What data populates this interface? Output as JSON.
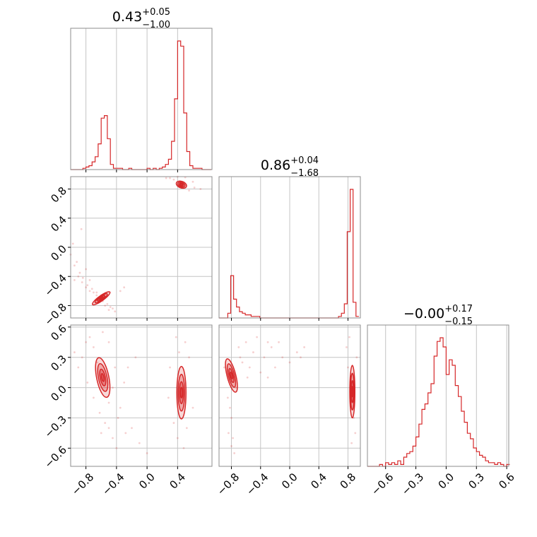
{
  "chart_data": {
    "type": "corner",
    "color": "#d62728",
    "parameters": [
      {
        "median": "0.43",
        "plus": "+0.05",
        "minus": "−1.00"
      },
      {
        "median": "0.86",
        "plus": "+0.04",
        "minus": "−1.68"
      },
      {
        "median": "−0.00",
        "plus": "+0.17",
        "minus": "−0.15"
      }
    ],
    "ranges": [
      [
        -1.0,
        0.85
      ],
      [
        -0.97,
        0.97
      ],
      [
        -0.78,
        0.62
      ]
    ],
    "ticks": [
      {
        "values": [
          -0.8,
          -0.4,
          0.0,
          0.4
        ],
        "labels": [
          "−0.8",
          "−0.4",
          "0.0",
          "0.4"
        ]
      },
      {
        "values": [
          -0.8,
          -0.4,
          0.0,
          0.4,
          0.8
        ],
        "labels": [
          "−0.8",
          "−0.4",
          "0.0",
          "0.4",
          "0.8"
        ]
      },
      {
        "values": [
          -0.6,
          -0.3,
          0.0,
          0.3,
          0.6
        ],
        "labels": [
          "−0.6",
          "−0.3",
          "0.0",
          "0.3",
          "0.6"
        ]
      }
    ],
    "histograms": [
      {
        "x": [
          -0.98,
          -0.94,
          -0.9,
          -0.86,
          -0.82,
          -0.78,
          -0.74,
          -0.7,
          -0.66,
          -0.62,
          -0.58,
          -0.54,
          -0.5,
          -0.46,
          -0.42,
          -0.38,
          -0.34,
          -0.3,
          -0.26,
          -0.22,
          -0.18,
          -0.14,
          -0.1,
          -0.06,
          -0.02,
          0.02,
          0.06,
          0.1,
          0.14,
          0.18,
          0.22,
          0.26,
          0.3,
          0.34,
          0.38,
          0.42,
          0.46,
          0.5,
          0.54,
          0.58,
          0.62,
          0.66,
          0.7,
          0.74,
          0.78,
          0.82
        ],
        "y": [
          0,
          0,
          0,
          0,
          1,
          2,
          3,
          6,
          10,
          20,
          40,
          42,
          24,
          4,
          1,
          1,
          1,
          0,
          0,
          1,
          0,
          0,
          0,
          0,
          0,
          1,
          0,
          1,
          0,
          1,
          2,
          4,
          8,
          22,
          55,
          100,
          96,
          44,
          14,
          3,
          1,
          1,
          1,
          0,
          0,
          0
        ]
      },
      {
        "x": [
          -0.95,
          -0.91,
          -0.87,
          -0.83,
          -0.79,
          -0.75,
          -0.71,
          -0.67,
          -0.63,
          -0.59,
          -0.55,
          -0.51,
          -0.47,
          -0.43,
          -0.39,
          -0.35,
          -0.31,
          -0.27,
          -0.23,
          -0.19,
          -0.15,
          -0.11,
          -0.07,
          -0.03,
          0.01,
          0.05,
          0.09,
          0.13,
          0.17,
          0.21,
          0.25,
          0.29,
          0.33,
          0.37,
          0.41,
          0.45,
          0.49,
          0.53,
          0.57,
          0.61,
          0.65,
          0.69,
          0.73,
          0.77,
          0.81,
          0.85,
          0.89,
          0.93
        ],
        "y": [
          0,
          0,
          0,
          3,
          27,
          12,
          7,
          4,
          3,
          2,
          2,
          1,
          1,
          1,
          0,
          0,
          0,
          0,
          0,
          0,
          0,
          0,
          0,
          0,
          0,
          0,
          0,
          0,
          0,
          0,
          0,
          0,
          0,
          0,
          0,
          0,
          0,
          0,
          0,
          0,
          0,
          1,
          3,
          9,
          55,
          82,
          10,
          1
        ]
      },
      {
        "x": [
          -0.765,
          -0.735,
          -0.705,
          -0.675,
          -0.645,
          -0.615,
          -0.585,
          -0.555,
          -0.525,
          -0.495,
          -0.465,
          -0.435,
          -0.405,
          -0.375,
          -0.345,
          -0.315,
          -0.285,
          -0.255,
          -0.225,
          -0.195,
          -0.165,
          -0.135,
          -0.105,
          -0.075,
          -0.045,
          -0.015,
          0.015,
          0.045,
          0.075,
          0.105,
          0.135,
          0.165,
          0.195,
          0.225,
          0.255,
          0.285,
          0.315,
          0.345,
          0.375,
          0.405,
          0.435,
          0.465,
          0.495,
          0.525,
          0.555,
          0.585,
          0.615
        ],
        "y": [
          0,
          0,
          0,
          0,
          1,
          0,
          2,
          1,
          2,
          1,
          3,
          1,
          5,
          7,
          8,
          11,
          16,
          23,
          31,
          34,
          40,
          45,
          60,
          68,
          70,
          65,
          50,
          58,
          55,
          44,
          38,
          30,
          24,
          18,
          15,
          10,
          8,
          6,
          5,
          3,
          2,
          2,
          1,
          2,
          1,
          0,
          1
        ]
      }
    ],
    "pairs": [
      {
        "xi": 0,
        "yi": 1,
        "clusters": [
          {
            "cx": 0.45,
            "cy": 0.86,
            "rx": 0.07,
            "ry": 0.045,
            "angle": -0.35
          },
          {
            "cx": -0.6,
            "cy": -0.7,
            "rx": 0.14,
            "ry": 0.035,
            "angle": 0.62
          }
        ],
        "scatter": [
          [
            -1.0,
            -0.1
          ],
          [
            -0.95,
            -0.25
          ],
          [
            -0.9,
            -0.4
          ],
          [
            -0.85,
            -0.48
          ],
          [
            -0.8,
            -0.55
          ],
          [
            -0.75,
            -0.6
          ],
          [
            -0.7,
            -0.62
          ],
          [
            -0.78,
            -0.52
          ],
          [
            -0.72,
            -0.57
          ],
          [
            -0.66,
            -0.66
          ],
          [
            -0.63,
            -0.7
          ],
          [
            -0.58,
            -0.74
          ],
          [
            -0.52,
            -0.78
          ],
          [
            -0.48,
            -0.82
          ],
          [
            -0.45,
            -0.84
          ],
          [
            -0.3,
            -0.55
          ],
          [
            -0.95,
            -0.45
          ],
          [
            -0.88,
            -0.35
          ],
          [
            -0.92,
            -0.2
          ],
          [
            -0.97,
            0.05
          ],
          [
            -0.86,
            0.25
          ],
          [
            -0.8,
            -0.3
          ],
          [
            -0.75,
            -0.45
          ],
          [
            0.3,
            0.95
          ],
          [
            0.35,
            0.93
          ],
          [
            0.6,
            0.9
          ],
          [
            0.62,
            0.82
          ],
          [
            0.55,
            0.78
          ],
          [
            0.7,
            0.8
          ],
          [
            0.4,
            0.97
          ],
          [
            0.25,
            0.95
          ],
          [
            0.5,
            0.96
          ],
          [
            -0.6,
            -0.66
          ],
          [
            -0.66,
            -0.62
          ],
          [
            -0.55,
            -0.8
          ],
          [
            -0.5,
            -0.86
          ],
          [
            -0.65,
            -0.72
          ],
          [
            -0.42,
            -0.88
          ],
          [
            -0.35,
            -0.6
          ],
          [
            -0.84,
            -0.42
          ]
        ]
      },
      {
        "xi": 0,
        "yi": 2,
        "clusters": [
          {
            "cx": -0.58,
            "cy": 0.1,
            "rx": 0.08,
            "ry": 0.2,
            "angle": 0.2
          },
          {
            "cx": 0.45,
            "cy": -0.05,
            "rx": 0.06,
            "ry": 0.26,
            "angle": 0.0
          }
        ],
        "scatter": [
          [
            -0.95,
            0.35
          ],
          [
            -0.9,
            0.2
          ],
          [
            -0.85,
            0.3
          ],
          [
            -0.8,
            0.45
          ],
          [
            -0.75,
            0.5
          ],
          [
            -0.7,
            0.4
          ],
          [
            -0.62,
            -0.25
          ],
          [
            -0.55,
            -0.35
          ],
          [
            -0.5,
            -0.4
          ],
          [
            -0.45,
            -0.5
          ],
          [
            -0.4,
            -0.6
          ],
          [
            -0.38,
            -0.3
          ],
          [
            -0.35,
            -0.2
          ],
          [
            -0.3,
            0.05
          ],
          [
            -0.25,
            0.2
          ],
          [
            -0.2,
            -0.4
          ],
          [
            -0.1,
            -0.55
          ],
          [
            0.0,
            -0.65
          ],
          [
            -0.5,
            0.45
          ],
          [
            -0.58,
            0.55
          ],
          [
            -0.7,
            -0.1
          ],
          [
            -0.78,
            0.05
          ],
          [
            0.3,
            0.2
          ],
          [
            0.35,
            -0.35
          ],
          [
            0.4,
            -0.5
          ],
          [
            0.5,
            0.45
          ],
          [
            0.55,
            0.3
          ],
          [
            0.6,
            -0.2
          ],
          [
            0.48,
            -0.6
          ],
          [
            0.38,
            0.5
          ],
          [
            0.28,
            -0.1
          ],
          [
            -0.65,
            0.25
          ],
          [
            -0.45,
            0.0
          ],
          [
            -0.5,
            -0.15
          ],
          [
            0.42,
            0.35
          ],
          [
            0.52,
            -0.4
          ],
          [
            -0.42,
            0.2
          ],
          [
            -0.6,
            -0.45
          ],
          [
            -0.28,
            -0.45
          ],
          [
            -0.15,
            0.3
          ]
        ]
      },
      {
        "xi": 1,
        "yi": 2,
        "clusters": [
          {
            "cx": -0.8,
            "cy": 0.12,
            "rx": 0.06,
            "ry": 0.17,
            "angle": 0.25
          },
          {
            "cx": 0.86,
            "cy": -0.04,
            "rx": 0.035,
            "ry": 0.26,
            "angle": 0.0
          }
        ],
        "scatter": [
          [
            -0.9,
            0.2
          ],
          [
            -0.85,
            -0.1
          ],
          [
            -0.8,
            -0.3
          ],
          [
            -0.78,
            -0.5
          ],
          [
            -0.76,
            -0.65
          ],
          [
            -0.7,
            0.4
          ],
          [
            -0.6,
            0.45
          ],
          [
            -0.5,
            0.35
          ],
          [
            -0.45,
            0.5
          ],
          [
            -0.35,
            0.3
          ],
          [
            -0.3,
            0.1
          ],
          [
            -0.25,
            0.4
          ],
          [
            -0.2,
            0.2
          ],
          [
            -0.1,
            0.3
          ],
          [
            0.0,
            0.25
          ],
          [
            0.1,
            0.35
          ],
          [
            0.2,
            0.4
          ],
          [
            -0.65,
            0.25
          ],
          [
            -0.55,
            0.2
          ],
          [
            -0.4,
            0.15
          ],
          [
            0.78,
            0.4
          ],
          [
            0.82,
            0.5
          ],
          [
            0.9,
            -0.45
          ],
          [
            0.85,
            -0.55
          ],
          [
            0.8,
            0.2
          ],
          [
            0.92,
            0.3
          ],
          [
            -0.82,
            -0.2
          ],
          [
            -0.74,
            0.0
          ],
          [
            -0.68,
            0.3
          ],
          [
            -0.58,
            0.1
          ],
          [
            0.88,
            -0.3
          ],
          [
            -0.84,
            -0.45
          ],
          [
            -0.8,
            -0.58
          ],
          [
            -0.3,
            0.45
          ],
          [
            0.15,
            0.3
          ],
          [
            -0.15,
            0.45
          ]
        ]
      }
    ]
  }
}
